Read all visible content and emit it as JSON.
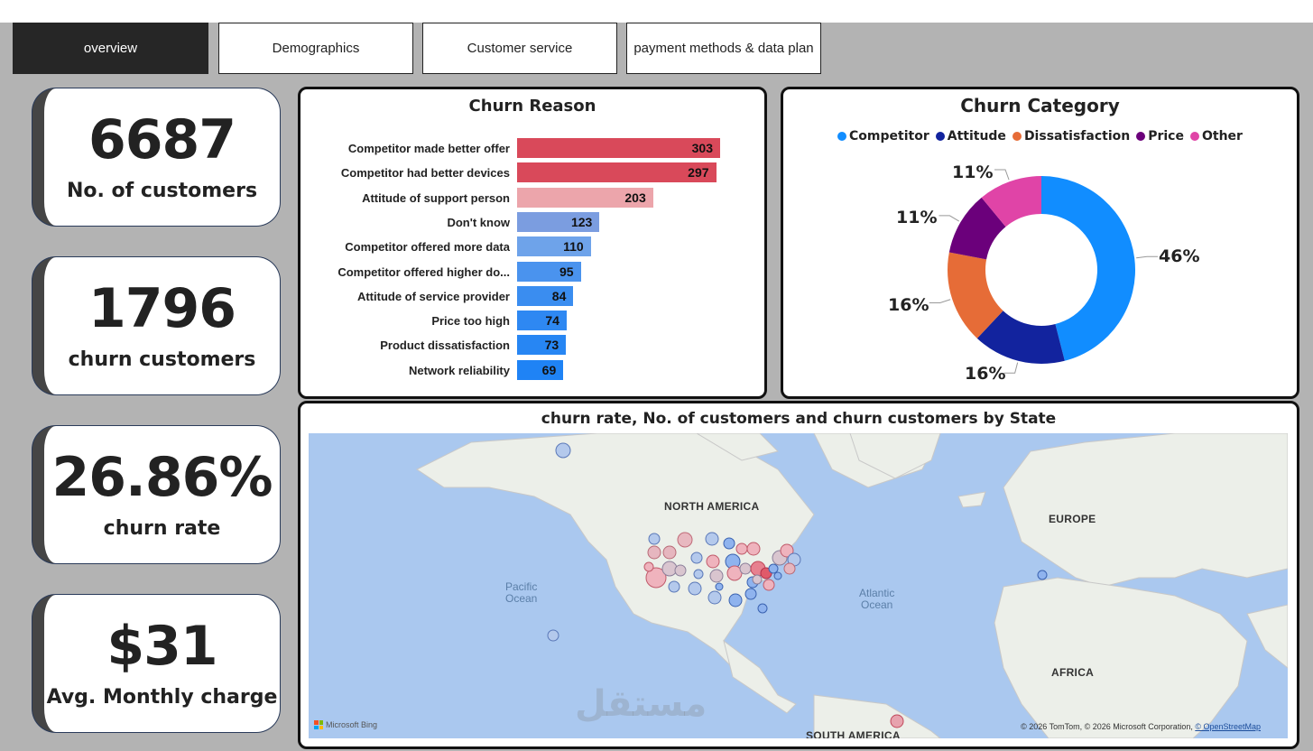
{
  "tabs": [
    {
      "label": "overview",
      "active": true
    },
    {
      "label": "Demographics",
      "active": false
    },
    {
      "label": "Customer service",
      "active": false
    },
    {
      "label": "payment methods & data plan",
      "active": false
    }
  ],
  "kpis": [
    {
      "value": "6687",
      "label": "No. of customers"
    },
    {
      "value": "1796",
      "label": "churn customers"
    },
    {
      "value": "26.86%",
      "label": "churn rate"
    },
    {
      "value": "$31",
      "label": "Avg. Monthly charge"
    }
  ],
  "chart_data": [
    {
      "type": "bar",
      "orientation": "horizontal",
      "title": "Churn Reason",
      "categories": [
        "Competitor made better offer",
        "Competitor had better devices",
        "Attitude of support person",
        "Don't know",
        "Competitor offered more data",
        "Competitor offered higher do...",
        "Attitude of service provider",
        "Price too high",
        "Product dissatisfaction",
        "Network reliability"
      ],
      "values": [
        303,
        297,
        203,
        123,
        110,
        95,
        84,
        74,
        73,
        69
      ],
      "colors": [
        "#d9495a",
        "#d9495a",
        "#eca5ab",
        "#7b9de0",
        "#6ea3ea",
        "#4a93ee",
        "#3a8df0",
        "#2e88f2",
        "#2786f3",
        "#1f83f5"
      ],
      "xlim": [
        0,
        303
      ]
    },
    {
      "type": "pie",
      "subtype": "donut",
      "title": "Churn Category",
      "categories": [
        "Competitor",
        "Attitude",
        "Dissatisfaction",
        "Price",
        "Other"
      ],
      "values": [
        46,
        16,
        16,
        11,
        11
      ],
      "labels": [
        "46%",
        "16%",
        "16%",
        "11%",
        "11%"
      ],
      "colors": [
        "#118dff",
        "#12239e",
        "#e66c37",
        "#6b007b",
        "#e044a7"
      ],
      "legend": "top"
    }
  ],
  "map": {
    "title": "churn rate, No. of customers and churn customers by State",
    "labels": {
      "north_america": "NORTH AMERICA",
      "europe": "EUROPE",
      "africa": "AFRICA",
      "south_america": "SOUTH AMERICA",
      "pacific_1": "Pacific",
      "pacific_2": "Ocean",
      "atlantic_1": "Atlantic",
      "atlantic_2": "Ocean"
    },
    "credit_prefix": "© 2026 TomTom, © 2026 Microsoft Corporation, ",
    "credit_link": "© OpenStreetMap",
    "bing": "Microsoft Bing",
    "watermark": "مستقل"
  }
}
